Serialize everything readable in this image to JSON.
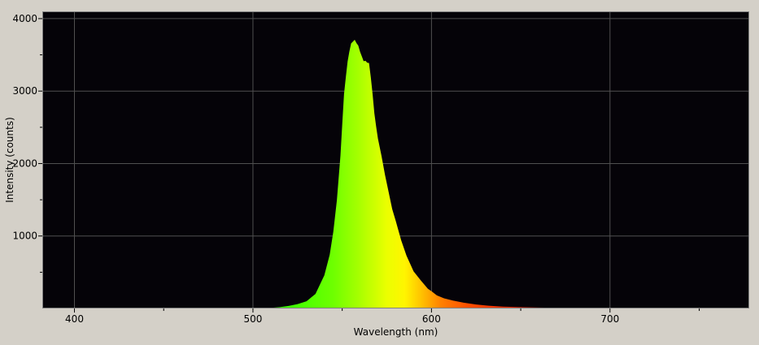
{
  "chart_data": {
    "type": "area",
    "title": "",
    "xlabel": "Wavelength (nm)",
    "ylabel": "Intensity (counts)",
    "xlim": [
      382,
      778
    ],
    "ylim": [
      0,
      4100
    ],
    "x_ticks": [
      400,
      500,
      600,
      700
    ],
    "y_ticks": [
      1000,
      2000,
      3000,
      4000
    ],
    "grid": true,
    "legend": "none",
    "fill": "spectral colors (wavelength-mapped gradient)",
    "plot_background": "#050308",
    "series": [
      {
        "x": [
          505,
          510,
          515,
          520,
          525,
          530,
          535,
          540,
          543,
          545,
          547,
          549,
          550,
          551,
          552,
          553,
          554,
          555,
          556,
          557,
          558,
          559,
          560,
          561,
          562,
          563,
          564,
          565,
          566,
          567,
          568,
          569,
          570,
          572,
          574,
          576,
          578,
          580,
          583,
          586,
          590,
          594,
          598,
          600,
          603,
          607,
          612,
          618,
          625,
          632,
          640,
          650,
          660,
          670,
          680,
          690,
          700,
          720,
          740,
          760,
          778
        ],
        "y": [
          0,
          8,
          18,
          35,
          60,
          100,
          200,
          450,
          750,
          1050,
          1500,
          2100,
          2550,
          2950,
          3200,
          3400,
          3550,
          3650,
          3690,
          3700,
          3670,
          3620,
          3550,
          3470,
          3420,
          3410,
          3400,
          3380,
          3200,
          2950,
          2700,
          2500,
          2350,
          2100,
          1850,
          1600,
          1380,
          1200,
          950,
          720,
          520,
          380,
          280,
          230,
          180,
          140,
          110,
          80,
          55,
          38,
          26,
          18,
          12,
          9,
          7,
          5,
          4,
          2,
          1,
          0,
          0
        ]
      }
    ]
  }
}
